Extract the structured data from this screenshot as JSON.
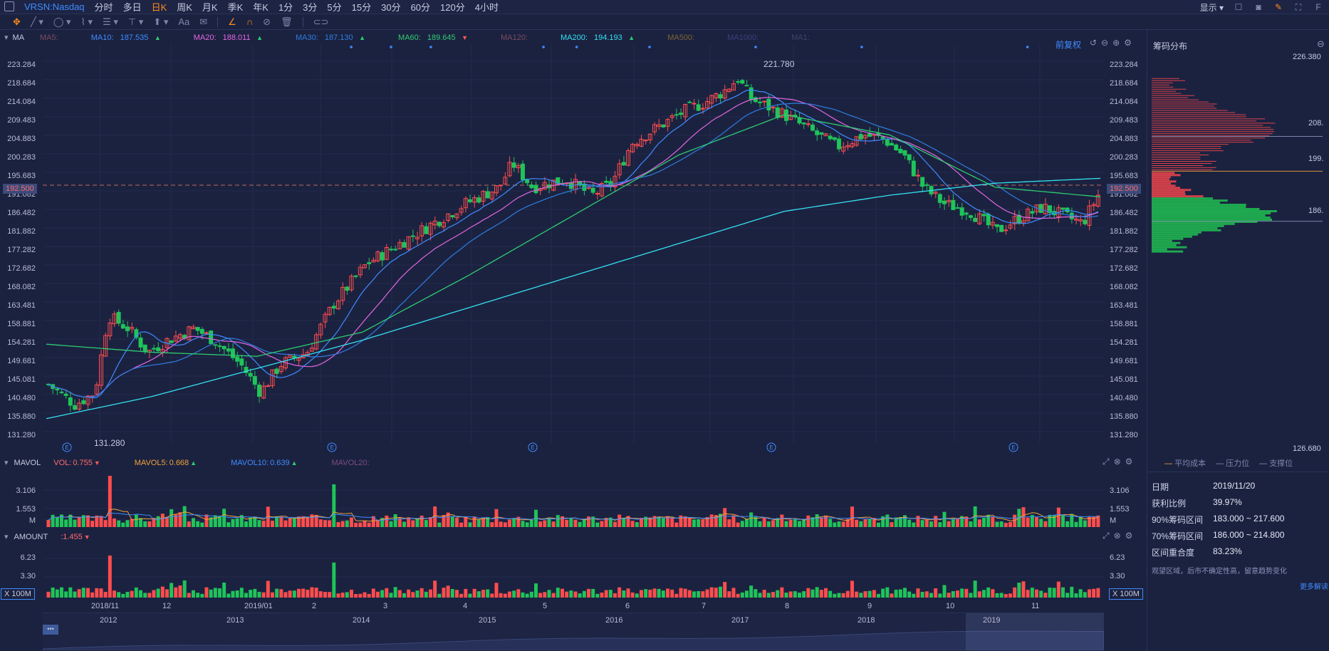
{
  "topbar": {
    "symbol": "VRSN:Nasdaq",
    "periods": [
      "分时",
      "多日",
      "日K",
      "周K",
      "月K",
      "季K",
      "年K",
      "1分",
      "3分",
      "5分",
      "15分",
      "30分",
      "60分",
      "120分",
      "4小时"
    ],
    "active_period": "日K",
    "display_label": "显示"
  },
  "main_legend": {
    "ma_label": "MA",
    "items": [
      {
        "label": "MA5:",
        "value": "",
        "color": "#7b4c5f"
      },
      {
        "label": "MA10:",
        "value": "187.535",
        "arrow": "▲",
        "color": "#3f8cff"
      },
      {
        "label": "MA20:",
        "value": "188.011",
        "arrow": "▲",
        "color": "#e466e3"
      },
      {
        "label": "MA30:",
        "value": "187.130",
        "arrow": "▲",
        "color": "#2e7de0"
      },
      {
        "label": "MA60:",
        "value": "189.645",
        "arrow": "▼",
        "color": "#2ecc71"
      },
      {
        "label": "MA120:",
        "value": "",
        "color": "#7b4c5f"
      },
      {
        "label": "MA200:",
        "value": "194.193",
        "arrow": "▲",
        "color": "#35e0f0"
      },
      {
        "label": "MA500:",
        "value": "",
        "color": "#7a6534"
      },
      {
        "label": "MA1000:",
        "value": "",
        "color": "#3d3f7a"
      },
      {
        "label": "MA1:",
        "value": "",
        "color": "#3d4468"
      }
    ],
    "rights_label": "前复权"
  },
  "price_axis": [
    "223.284",
    "218.684",
    "214.084",
    "209.483",
    "204.883",
    "200.283",
    "195.683",
    "191.082",
    "186.482",
    "181.882",
    "177.282",
    "172.682",
    "168.082",
    "163.481",
    "158.881",
    "154.281",
    "149.681",
    "145.081",
    "140.480",
    "135.880",
    "131.280"
  ],
  "current_price": "192.500",
  "high_label": "221.780",
  "low_label": "131.280",
  "volume_panel": {
    "title": "MAVOL",
    "vol_label": "VOL:",
    "vol_value": "0.755",
    "mavol5_label": "MAVOL5:",
    "mavol5_value": "0.668",
    "mavol10_label": "MAVOL10:",
    "mavol10_value": "0.639",
    "mavol20_label": "MAVOL20:",
    "axis": [
      "3.106",
      "1.553",
      "M"
    ]
  },
  "amount_panel": {
    "title": "AMOUNT",
    "value_label": ":1.455",
    "axis": [
      "6.23",
      "3.30"
    ],
    "unit": "X 100M"
  },
  "date_axis": [
    "2018/11",
    "12",
    "2019/01",
    "2",
    "3",
    "4",
    "5",
    "6",
    "7",
    "8",
    "9",
    "10",
    "11"
  ],
  "nav_years": [
    "2012",
    "2013",
    "2014",
    "2015",
    "2016",
    "2017",
    "2018",
    "2019"
  ],
  "chip_panel": {
    "title": "筹码分布",
    "top_price": "226.380",
    "bottom_price": "126.680",
    "marks": [
      "208.",
      "199.",
      "186."
    ],
    "legend": [
      "平均成本",
      "压力位",
      "支撑位"
    ],
    "rows": [
      {
        "label": "日期",
        "value": "2019/11/20"
      },
      {
        "label": "获利比例",
        "value": "39.97%"
      },
      {
        "label": "90%筹码区间",
        "value": "183.000 ~ 217.600"
      },
      {
        "label": "70%筹码区间",
        "value": "186.000 ~ 214.800"
      },
      {
        "label": "区间重合度",
        "value": "83.23%"
      }
    ],
    "note": "观望区域，后市不确定性高，留意趋势变化",
    "more_link": "更多解读"
  },
  "chart_data": {
    "type": "line",
    "title": "",
    "series": [
      {
        "name": "MA200",
        "values": [
          134.5,
          140,
          147,
          154,
          162,
          170,
          178,
          186,
          190,
          193,
          194.2
        ]
      },
      {
        "name": "MA60",
        "values": [
          153,
          151,
          150,
          156,
          170,
          185,
          200,
          210,
          205,
          192,
          189.6
        ]
      }
    ],
    "ylim": [
      126.68,
      226.38
    ]
  }
}
